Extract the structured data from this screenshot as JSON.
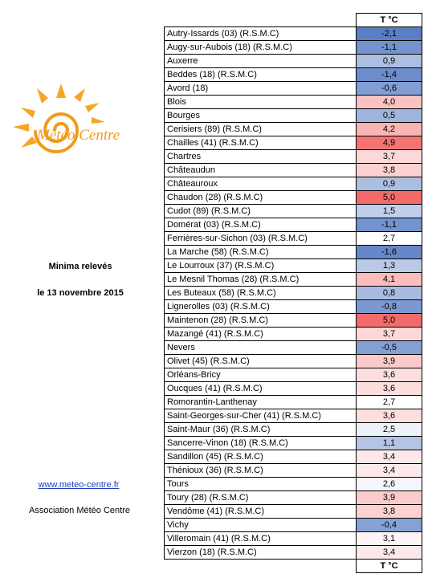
{
  "logo": {
    "text": "Météo Centre"
  },
  "side": {
    "title": "Minima relevés",
    "date": "le 13 novembre 2015",
    "link": "www.meteo-centre.fr",
    "association": "Association Météo Centre"
  },
  "table": {
    "header": "T °C",
    "footer": "T °C",
    "colors": {
      "cold_strong": "#5b7fc4",
      "cold_light": "#d6def0",
      "neutral": "#ffffff",
      "warm_light": "#f9d3d3",
      "warm_strong": "#f36a6a"
    },
    "rows": [
      {
        "name": "Autry-Issards (03) (R.S.M.C)",
        "temp": "-2,1"
      },
      {
        "name": "Augy-sur-Aubois (18) (R.S.M.C)",
        "temp": "-1,1"
      },
      {
        "name": "Auxerre",
        "temp": "0,9"
      },
      {
        "name": "Beddes (18) (R.S.M.C)",
        "temp": "-1,4"
      },
      {
        "name": "Avord (18)",
        "temp": "-0,6"
      },
      {
        "name": "Blois",
        "temp": "4,0"
      },
      {
        "name": "Bourges",
        "temp": "0,5"
      },
      {
        "name": "Cerisiers (89) (R.S.M.C)",
        "temp": "4,2"
      },
      {
        "name": "Chailles (41) (R.S.M.C)",
        "temp": "4,9"
      },
      {
        "name": "Chartres",
        "temp": "3,7"
      },
      {
        "name": "Châteaudun",
        "temp": "3,8"
      },
      {
        "name": "Châteauroux",
        "temp": "0,9"
      },
      {
        "name": "Chaudon (28) (R.S.M.C)",
        "temp": "5,0"
      },
      {
        "name": "Cudot (89) (R.S.M.C)",
        "temp": "1,5"
      },
      {
        "name": "Domérat (03) (R.S.M.C)",
        "temp": "-1,1"
      },
      {
        "name": "Ferrières-sur-Sichon (03) (R.S.M.C)",
        "temp": "2,7"
      },
      {
        "name": "La Marche (58) (R.S.M.C)",
        "temp": "-1,6"
      },
      {
        "name": "Le Lourroux (37) (R.S.M.C)",
        "temp": "1,3"
      },
      {
        "name": "Le Mesnil Thomas (28) (R.S.M.C)",
        "temp": "4,1"
      },
      {
        "name": "Les Buteaux (58) (R.S.M.C)",
        "temp": "0,8"
      },
      {
        "name": "Lignerolles (03) (R.S.M.C)",
        "temp": "-0,8"
      },
      {
        "name": "Maintenon (28) (R.S.M.C)",
        "temp": "5,0"
      },
      {
        "name": "Mazangé (41) (R.S.M.C)",
        "temp": "3,7"
      },
      {
        "name": "Nevers",
        "temp": "-0,5"
      },
      {
        "name": "Olivet (45) (R.S.M.C)",
        "temp": "3,9"
      },
      {
        "name": "Orléans-Bricy",
        "temp": "3,6"
      },
      {
        "name": "Oucques (41) (R.S.M.C)",
        "temp": "3,6"
      },
      {
        "name": "Romorantin-Lanthenay",
        "temp": "2,7"
      },
      {
        "name": "Saint-Georges-sur-Cher (41) (R.S.M.C)",
        "temp": "3,6"
      },
      {
        "name": "Saint-Maur (36) (R.S.M.C)",
        "temp": "2,5"
      },
      {
        "name": "Sancerre-Vinon  (18) (R.S.M.C)",
        "temp": "1,1"
      },
      {
        "name": "Sandillon (45) (R.S.M.C)",
        "temp": "3,4"
      },
      {
        "name": "Thénioux (36) (R.S.M.C)",
        "temp": "3,4"
      },
      {
        "name": "Tours",
        "temp": "2,6"
      },
      {
        "name": "Toury (28) (R.S.M.C)",
        "temp": "3,9"
      },
      {
        "name": "Vendôme (41) (R.S.M.C)",
        "temp": "3,8"
      },
      {
        "name": "Vichy",
        "temp": "-0,4"
      },
      {
        "name": "Villeromain (41) (R.S.M.C)",
        "temp": "3,1"
      },
      {
        "name": "Vierzon (18) (R.S.M.C)",
        "temp": "3,4"
      }
    ]
  }
}
